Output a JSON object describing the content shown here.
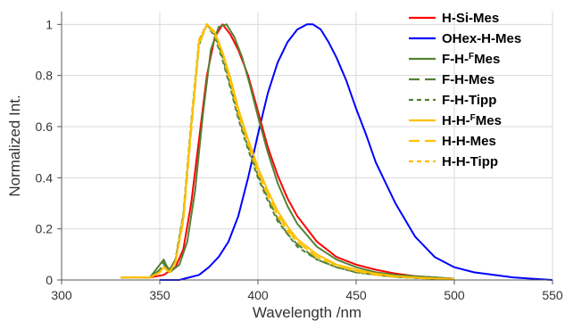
{
  "chart_data": {
    "type": "line",
    "xlabel": "Wavelength /nm",
    "ylabel": "Normalized Int.",
    "xlim": [
      300,
      550
    ],
    "ylim": [
      0,
      1.05
    ],
    "xticks": [
      300,
      350,
      400,
      450,
      500,
      550
    ],
    "yticks": [
      0,
      0.2,
      0.4,
      0.6,
      0.8,
      1
    ],
    "xtick_labels": [
      "300",
      "350",
      "400",
      "450",
      "500",
      "550"
    ],
    "ytick_labels": [
      "0",
      "0.2",
      "0.4",
      "0.6",
      "0.8",
      "1"
    ],
    "grid": true,
    "legend_position": "top-right",
    "series": [
      {
        "name": "H-Si-Mes",
        "color": "#ff0000",
        "dash": "solid",
        "x": [
          330,
          345,
          352,
          358,
          362,
          366,
          370,
          374,
          378,
          382,
          386,
          390,
          395,
          400,
          405,
          410,
          415,
          420,
          430,
          440,
          450,
          460,
          470,
          480,
          490,
          500
        ],
        "y": [
          0.01,
          0.01,
          0.02,
          0.05,
          0.12,
          0.3,
          0.55,
          0.8,
          0.95,
          1.0,
          0.96,
          0.9,
          0.8,
          0.66,
          0.52,
          0.41,
          0.32,
          0.25,
          0.15,
          0.09,
          0.06,
          0.04,
          0.025,
          0.015,
          0.01,
          0.005
        ]
      },
      {
        "name": "OHex-H-Mes",
        "color": "#0000ff",
        "dash": "solid",
        "x": [
          350,
          360,
          365,
          370,
          375,
          380,
          385,
          390,
          395,
          400,
          405,
          410,
          415,
          420,
          425,
          428,
          432,
          436,
          440,
          445,
          450,
          455,
          460,
          465,
          470,
          480,
          490,
          500,
          510,
          520,
          530,
          540,
          550
        ],
        "y": [
          0.0,
          0.0,
          0.01,
          0.02,
          0.05,
          0.09,
          0.15,
          0.25,
          0.4,
          0.57,
          0.73,
          0.85,
          0.93,
          0.98,
          1.0,
          1.0,
          0.98,
          0.93,
          0.87,
          0.78,
          0.67,
          0.57,
          0.46,
          0.38,
          0.3,
          0.17,
          0.09,
          0.05,
          0.03,
          0.02,
          0.01,
          0.005,
          0.0
        ]
      },
      {
        "name": "F-H-FMes",
        "name_label": "F-H-",
        "name_sup": "F",
        "name_tail": "Mes",
        "color": "#548235",
        "dash": "solid",
        "x": [
          330,
          345,
          352,
          355,
          360,
          364,
          368,
          372,
          376,
          380,
          384,
          388,
          392,
          396,
          400,
          405,
          410,
          415,
          420,
          430,
          440,
          450,
          460,
          470,
          480,
          490,
          500
        ],
        "y": [
          0.01,
          0.01,
          0.08,
          0.03,
          0.06,
          0.15,
          0.35,
          0.65,
          0.9,
          0.99,
          1.0,
          0.95,
          0.87,
          0.76,
          0.64,
          0.5,
          0.38,
          0.29,
          0.22,
          0.13,
          0.08,
          0.05,
          0.03,
          0.02,
          0.015,
          0.01,
          0.005
        ]
      },
      {
        "name": "F-H-Mes",
        "color": "#548235",
        "dash": "longdash",
        "x": [
          330,
          345,
          350,
          352,
          355,
          358,
          362,
          366,
          370,
          374,
          378,
          382,
          386,
          390,
          395,
          400,
          405,
          410,
          415,
          420,
          430,
          440,
          450,
          460,
          470,
          480,
          490,
          500
        ],
        "y": [
          0.01,
          0.01,
          0.04,
          0.07,
          0.04,
          0.08,
          0.25,
          0.6,
          0.92,
          1.0,
          0.96,
          0.87,
          0.76,
          0.64,
          0.52,
          0.41,
          0.32,
          0.24,
          0.18,
          0.14,
          0.08,
          0.05,
          0.03,
          0.02,
          0.012,
          0.008,
          0.005,
          0.003
        ]
      },
      {
        "name": "F-H-Tipp",
        "color": "#548235",
        "dash": "shortdash",
        "x": [
          330,
          345,
          350,
          352,
          355,
          358,
          362,
          366,
          370,
          374,
          378,
          382,
          386,
          390,
          395,
          400,
          405,
          410,
          415,
          420,
          430,
          440,
          450,
          460,
          470,
          480,
          490,
          500
        ],
        "y": [
          0.01,
          0.01,
          0.04,
          0.06,
          0.04,
          0.08,
          0.26,
          0.62,
          0.94,
          1.0,
          0.95,
          0.86,
          0.75,
          0.63,
          0.51,
          0.4,
          0.31,
          0.23,
          0.18,
          0.13,
          0.08,
          0.05,
          0.03,
          0.02,
          0.012,
          0.008,
          0.005,
          0.003
        ]
      },
      {
        "name": "H-H-FMes",
        "name_label": "H-H-",
        "name_sup": "F",
        "name_tail": "Mes",
        "color": "#ffc000",
        "dash": "solid",
        "x": [
          330,
          345,
          350,
          352,
          355,
          358,
          362,
          366,
          370,
          374,
          378,
          382,
          386,
          390,
          395,
          400,
          405,
          410,
          415,
          420,
          430,
          440,
          450,
          460,
          470,
          480,
          490,
          500
        ],
        "y": [
          0.01,
          0.01,
          0.03,
          0.05,
          0.03,
          0.07,
          0.24,
          0.6,
          0.93,
          1.0,
          0.97,
          0.89,
          0.79,
          0.67,
          0.55,
          0.44,
          0.35,
          0.27,
          0.21,
          0.16,
          0.1,
          0.06,
          0.04,
          0.025,
          0.015,
          0.01,
          0.006,
          0.004
        ]
      },
      {
        "name": "H-H-Mes",
        "color": "#ffc000",
        "dash": "longdash",
        "x": [
          330,
          345,
          350,
          352,
          355,
          358,
          362,
          366,
          370,
          374,
          378,
          382,
          386,
          390,
          395,
          400,
          405,
          410,
          415,
          420,
          430,
          440,
          450,
          460,
          470,
          480,
          490,
          500
        ],
        "y": [
          0.01,
          0.01,
          0.03,
          0.05,
          0.03,
          0.07,
          0.23,
          0.58,
          0.92,
          1.0,
          0.97,
          0.89,
          0.78,
          0.66,
          0.54,
          0.43,
          0.34,
          0.26,
          0.2,
          0.15,
          0.09,
          0.06,
          0.035,
          0.02,
          0.013,
          0.008,
          0.005,
          0.003
        ]
      },
      {
        "name": "H-H-Tipp",
        "color": "#ffc000",
        "dash": "shortdash",
        "x": [
          330,
          345,
          350,
          352,
          355,
          358,
          362,
          366,
          370,
          374,
          378,
          382,
          386,
          390,
          395,
          400,
          405,
          410,
          415,
          420,
          430,
          440,
          450,
          460,
          470,
          480,
          490,
          500
        ],
        "y": [
          0.01,
          0.01,
          0.03,
          0.05,
          0.03,
          0.07,
          0.25,
          0.61,
          0.94,
          1.0,
          0.96,
          0.88,
          0.77,
          0.65,
          0.53,
          0.42,
          0.33,
          0.25,
          0.19,
          0.15,
          0.09,
          0.055,
          0.035,
          0.02,
          0.013,
          0.008,
          0.005,
          0.003
        ]
      }
    ]
  }
}
